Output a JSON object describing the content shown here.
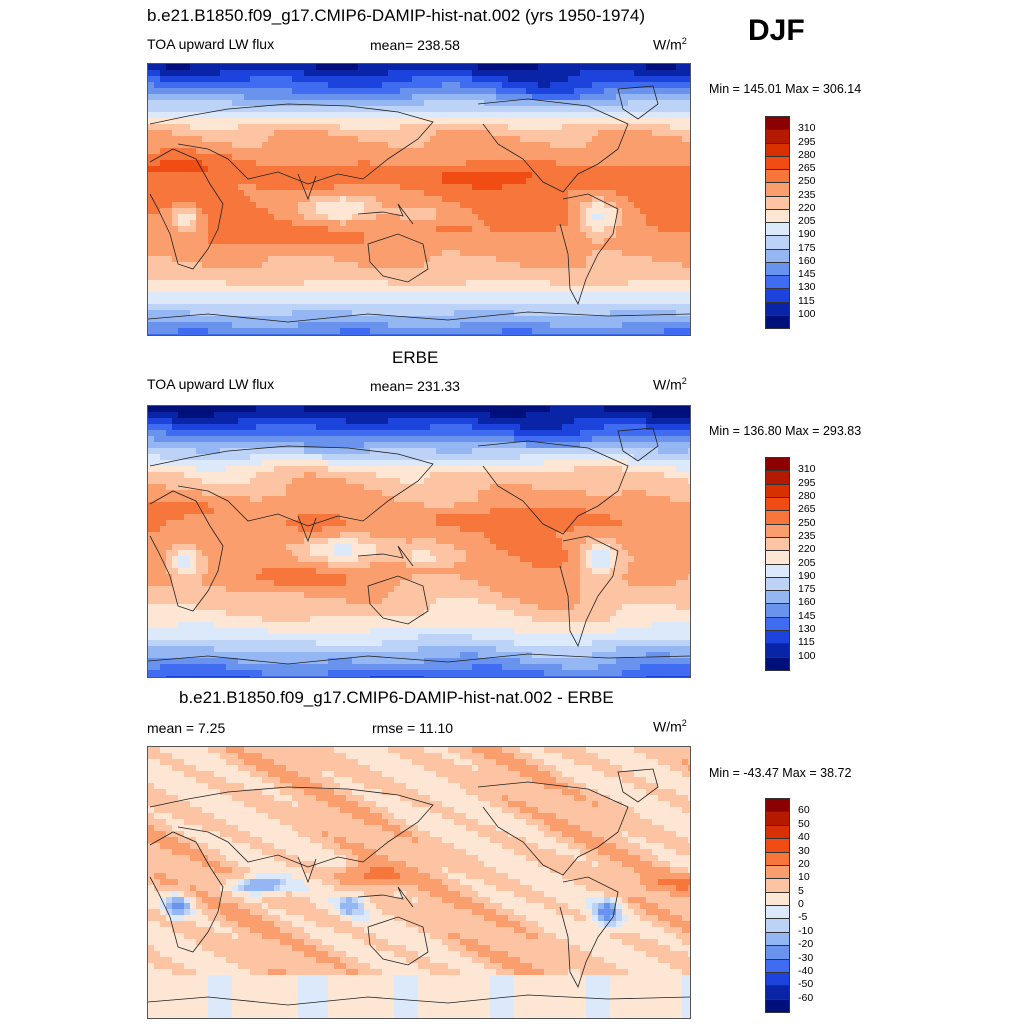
{
  "season": "DJF",
  "panels": [
    {
      "id": "model",
      "title": "b.e21.B1850.f09_g17.CMIP6-DAMIP-hist-nat.002 (yrs 1950-1974)",
      "left_label": "TOA upward LW flux",
      "center_label": "mean= 238.58",
      "units": "W/m",
      "units_sup": "2",
      "minmax": "Min = 145.01 Max = 306.14",
      "colorbar_labels": [
        "310",
        "295",
        "280",
        "265",
        "250",
        "235",
        "220",
        "205",
        "190",
        "175",
        "160",
        "145",
        "130",
        "115",
        "100"
      ],
      "field": "absolute"
    },
    {
      "id": "obs",
      "title": "ERBE",
      "left_label": "TOA upward LW flux",
      "center_label": "mean= 231.33",
      "units": "W/m",
      "units_sup": "2",
      "minmax": "Min = 136.80 Max = 293.83",
      "colorbar_labels": [
        "310",
        "295",
        "280",
        "265",
        "250",
        "235",
        "220",
        "205",
        "190",
        "175",
        "160",
        "145",
        "130",
        "115",
        "100"
      ],
      "field": "absolute"
    },
    {
      "id": "diff",
      "title": "b.e21.B1850.f09_g17.CMIP6-DAMIP-hist-nat.002 - ERBE",
      "left_label": "mean =   7.25",
      "center_label": "rmse =  11.10",
      "units": "W/m",
      "units_sup": "2",
      "minmax": "Min = -43.47 Max =  38.72",
      "colorbar_labels": [
        "60",
        "50",
        "40",
        "30",
        "20",
        "10",
        "5",
        "0",
        "-5",
        "-10",
        "-20",
        "-30",
        "-40",
        "-50",
        "-60"
      ],
      "field": "difference"
    }
  ],
  "colors": {
    "palette16": [
      "#8b0000",
      "#b31a00",
      "#d93000",
      "#f04c14",
      "#f7763c",
      "#fa9e6e",
      "#fcc4a2",
      "#fde6d4",
      "#dce9fa",
      "#bcd3f7",
      "#94b6f2",
      "#6a93ee",
      "#3f6cf0",
      "#1c44dc",
      "#0a24a8",
      "#00107a"
    ]
  }
}
